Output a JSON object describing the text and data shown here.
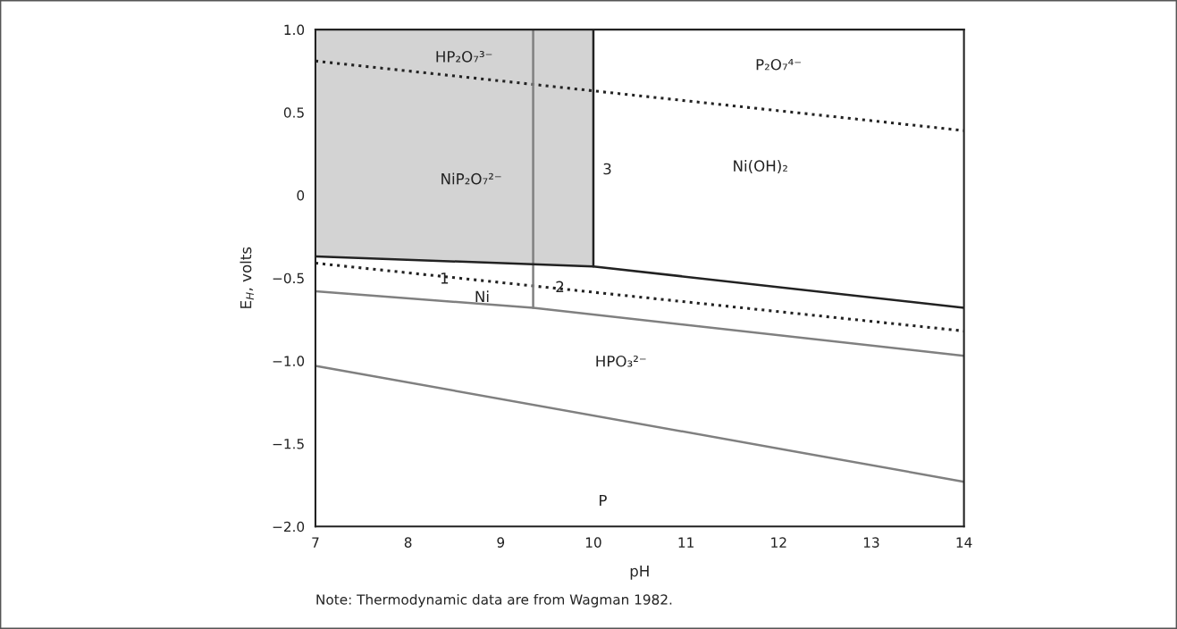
{
  "chart_data": {
    "type": "line",
    "xlabel": "pH",
    "ylabel": "E$_{H}$, volts",
    "xlim": [
      7,
      14
    ],
    "ylim": [
      -2.0,
      1.0
    ],
    "xticks": [
      7,
      8,
      9,
      10,
      11,
      12,
      13,
      14
    ],
    "yticks": [
      {
        "value": 1.0,
        "label": "1.0"
      },
      0.5,
      0,
      {
        "value": -0.5,
        "label": "−0.5"
      },
      {
        "value": -1.0,
        "label": "−1.0"
      },
      {
        "value": -1.5,
        "label": "−1.5"
      },
      {
        "value": -2.0,
        "label": "−2.0"
      }
    ],
    "grid": false,
    "series": [
      {
        "color": "#222222",
        "line_style": "dotted",
        "x": [
          7,
          14
        ],
        "values": [
          0.81,
          0.39
        ]
      },
      {
        "color": "#222222",
        "line_style": "dotted",
        "x": [
          7,
          14
        ],
        "values": [
          -0.41,
          -0.82
        ]
      },
      {
        "color": "#808080",
        "line_style": "solid",
        "x": [
          7,
          9.35,
          14
        ],
        "values": [
          -0.58,
          -0.68,
          -0.97
        ]
      },
      {
        "color": "#808080",
        "line_style": "solid",
        "x": [
          7,
          14
        ],
        "values": [
          -1.03,
          -1.73
        ]
      },
      {
        "color": "#808080",
        "line_style": "solid",
        "x": [
          9.35,
          9.35
        ],
        "values": [
          1.0,
          -0.68
        ]
      },
      {
        "color": "#222222",
        "line_style": "solid",
        "x": [
          7,
          10,
          14
        ],
        "values": [
          -0.37,
          -0.43,
          -0.68
        ],
        "lower": [
          -0.37,
          -0.43,
          null
        ],
        "upper": [
          1.0,
          1.0,
          null
        ]
      },
      {
        "color": "#222222",
        "line_style": "solid",
        "x": [
          10,
          10
        ],
        "values": [
          1.0,
          -0.43
        ]
      }
    ],
    "annotations": [
      "HP₂O₇³⁻",
      "P₂O₇⁴⁻",
      "NiP₂O₇²⁻",
      "3",
      "Ni(OH)₂",
      "1",
      "2",
      "Ni",
      "HPO₃²⁻",
      "P",
      "Note: Thermodynamic data are from Wagman 1982."
    ]
  }
}
